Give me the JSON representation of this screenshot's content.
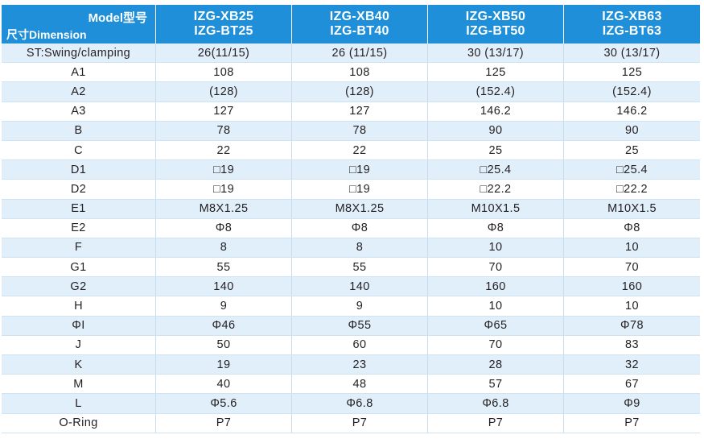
{
  "header": {
    "model_label": "Model型号",
    "dimension_label": "尺寸Dimension",
    "models": [
      {
        "line1": "IZG-XB25",
        "line2": "IZG-BT25"
      },
      {
        "line1": "IZG-XB40",
        "line2": "IZG-BT40"
      },
      {
        "line1": "IZG-XB50",
        "line2": "IZG-BT50"
      },
      {
        "line1": "IZG-XB63",
        "line2": "IZG-BT63"
      }
    ]
  },
  "rows": [
    {
      "label": "ST:Swing/clamping",
      "values": [
        "26(11/15)",
        "26 (11/15)",
        "30 (13/17)",
        "30 (13/17)"
      ]
    },
    {
      "label": "A1",
      "values": [
        "108",
        "108",
        "125",
        "125"
      ]
    },
    {
      "label": "A2",
      "values": [
        "(128)",
        "(128)",
        "(152.4)",
        "(152.4)"
      ]
    },
    {
      "label": "A3",
      "values": [
        "127",
        "127",
        "146.2",
        "146.2"
      ]
    },
    {
      "label": "B",
      "values": [
        "78",
        "78",
        "90",
        "90"
      ]
    },
    {
      "label": "C",
      "values": [
        "22",
        "22",
        "25",
        "25"
      ]
    },
    {
      "label": "D1",
      "values": [
        "□19",
        "□19",
        "□25.4",
        "□25.4"
      ]
    },
    {
      "label": "D2",
      "values": [
        "□19",
        "□19",
        "□22.2",
        "□22.2"
      ]
    },
    {
      "label": "E1",
      "values": [
        "M8X1.25",
        "M8X1.25",
        "M10X1.5",
        "M10X1.5"
      ]
    },
    {
      "label": "E2",
      "values": [
        "Φ8",
        "Φ8",
        "Φ8",
        "Φ8"
      ]
    },
    {
      "label": "F",
      "values": [
        "8",
        "8",
        "10",
        "10"
      ]
    },
    {
      "label": "G1",
      "values": [
        "55",
        "55",
        "70",
        "70"
      ]
    },
    {
      "label": "G2",
      "values": [
        "140",
        "140",
        "160",
        "160"
      ]
    },
    {
      "label": "H",
      "values": [
        "9",
        "9",
        "10",
        "10"
      ]
    },
    {
      "label": "ΦI",
      "values": [
        "Φ46",
        "Φ55",
        "Φ65",
        "Φ78"
      ]
    },
    {
      "label": "J",
      "values": [
        "50",
        "60",
        "70",
        "83"
      ]
    },
    {
      "label": "K",
      "values": [
        "19",
        "23",
        "28",
        "32"
      ]
    },
    {
      "label": "M",
      "values": [
        "40",
        "48",
        "57",
        "67"
      ]
    },
    {
      "label": "L",
      "values": [
        "Φ5.6",
        "Φ6.8",
        "Φ6.8",
        "Φ9"
      ]
    },
    {
      "label": "O-Ring",
      "values": [
        "P7",
        "P7",
        "P7",
        "P7"
      ]
    }
  ],
  "colors": {
    "header_bg": "#1e8fd8",
    "alt_row_bg": "#e1effb",
    "text": "#231f20"
  }
}
